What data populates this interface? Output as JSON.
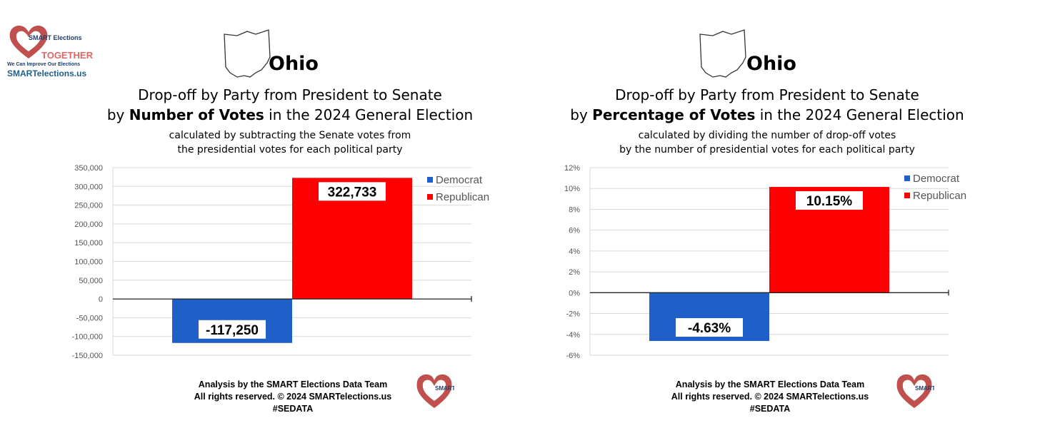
{
  "logo": {
    "heart_text": "SMART Elections",
    "together": "TOGETHER",
    "tagline": "We Can Improve Our Elections",
    "site": "SMARTelections.us",
    "colors": {
      "heart": "#c0504d",
      "together": "#e06666",
      "site": "#1f5f8b"
    }
  },
  "panels": [
    {
      "state": "Ohio",
      "title_line1": "Drop-off by Party from President to Senate",
      "title_line2_prefix": "by ",
      "title_line2_bold": "Number of Votes",
      "title_line2_suffix": " in the 2024 General Election",
      "sub_line1": "calculated by subtracting the Senate votes from",
      "sub_line2": "the presidential votes for each political party",
      "footer_line1": "Analysis by the SMART Elections Data Team",
      "footer_line2": "All rights reserved. © 2024 SMARTelections.us",
      "footer_line3": "#SEDATA",
      "footer_logo_text": "SMART Elections"
    },
    {
      "state": "Ohio",
      "title_line1": "Drop-off by Party from President to Senate",
      "title_line2_prefix": "by ",
      "title_line2_bold": "Percentage of Votes",
      "title_line2_suffix": " in the 2024 General Election",
      "sub_line1": "calculated by dividing the number of drop-off votes",
      "sub_line2": "by the number of presidential votes for each political party",
      "footer_line1": "Analysis by the SMART Elections Data Team",
      "footer_line2": "All rights reserved. © 2024 SMARTelections.us",
      "footer_line3": "#SEDATA",
      "footer_logo_text": "SMART Elections"
    }
  ],
  "chart_data": [
    {
      "type": "bar",
      "categories": [
        "Democrat",
        "Republican"
      ],
      "values": [
        -117250,
        322733
      ],
      "data_labels": [
        "-117,250",
        "322,733"
      ],
      "colors": [
        "#1f5fc8",
        "#ff0000"
      ],
      "ylim": [
        -150000,
        350000
      ],
      "yticks": [
        350000,
        300000,
        250000,
        200000,
        150000,
        100000,
        50000,
        0,
        -50000,
        -100000,
        -150000
      ],
      "ytick_labels": [
        "350,000",
        "300,000",
        "250,000",
        "200,000",
        "150,000",
        "100,000",
        "50,000",
        "0",
        "-50,000",
        "-100,000",
        "-150,000"
      ],
      "legend": [
        "Democrat",
        "Republican"
      ],
      "legend_position": "top-right",
      "grid": true,
      "title": "",
      "xlabel": "",
      "ylabel": ""
    },
    {
      "type": "bar",
      "categories": [
        "Democrat",
        "Republican"
      ],
      "values": [
        -4.63,
        10.15
      ],
      "data_labels": [
        "-4.63%",
        "10.15%"
      ],
      "colors": [
        "#1f5fc8",
        "#ff0000"
      ],
      "ylim": [
        -6,
        12
      ],
      "yticks": [
        12,
        10,
        8,
        6,
        4,
        2,
        0,
        -2,
        -4,
        -6
      ],
      "ytick_labels": [
        "12%",
        "10%",
        "8%",
        "6%",
        "4%",
        "2%",
        "0%",
        "-2%",
        "-4%",
        "-6%"
      ],
      "legend": [
        "Democrat",
        "Republican"
      ],
      "legend_position": "top-right",
      "grid": true,
      "title": "",
      "xlabel": "",
      "ylabel": ""
    }
  ]
}
